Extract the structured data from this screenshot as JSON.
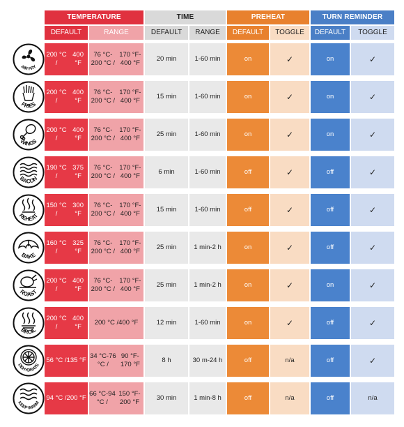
{
  "colors": {
    "temp_header": "#e0313f",
    "temp_default": "#e63946",
    "temp_range": "#f0a3a8",
    "time_header": "#d9d9d9",
    "time_cell": "#e9e9e9",
    "preheat_header": "#e8812e",
    "preheat_default": "#ec8a37",
    "preheat_toggle": "#f9dcc3",
    "reminder_header": "#4a7fc6",
    "reminder_default": "#4a82cc",
    "reminder_toggle": "#cfdbf0"
  },
  "groups": [
    {
      "label": "TEMPERATURE"
    },
    {
      "label": "TIME"
    },
    {
      "label": "PREHEAT"
    },
    {
      "label": "TURN REMINDER"
    }
  ],
  "subheaders": [
    "DEFAULT",
    "RANGE",
    "DEFAULT",
    "RANGE",
    "DEFAULT",
    "TOGGLE",
    "DEFAULT",
    "TOGGLE"
  ],
  "rows": [
    {
      "mode": "AIR FRY",
      "icon": "fan-icon",
      "temp_default": [
        "200 °C /",
        "400 °F"
      ],
      "temp_range": [
        "76 °C-200 °C /",
        "170 °F-400 °F"
      ],
      "time_default": "20 min",
      "time_range": "1-60 min",
      "preheat_default": "on",
      "preheat_toggle": "✓",
      "reminder_default": "on",
      "reminder_toggle": "✓"
    },
    {
      "mode": "FRIES",
      "icon": "fries-icon",
      "temp_default": [
        "200 °C /",
        "400 °F"
      ],
      "temp_range": [
        "76 °C-200 °C /",
        "170 °F-400 °F"
      ],
      "time_default": "15 min",
      "time_range": "1-60 min",
      "preheat_default": "on",
      "preheat_toggle": "✓",
      "reminder_default": "on",
      "reminder_toggle": "✓"
    },
    {
      "mode": "WINGS",
      "icon": "drumstick-icon",
      "temp_default": [
        "200 °C /",
        "400 °F"
      ],
      "temp_range": [
        "76 °C-200 °C /",
        "170 °F-400 °F"
      ],
      "time_default": "25 min",
      "time_range": "1-60 min",
      "preheat_default": "on",
      "preheat_toggle": "✓",
      "reminder_default": "on",
      "reminder_toggle": "✓"
    },
    {
      "mode": "BACON",
      "icon": "bacon-icon",
      "temp_default": [
        "190 °C /",
        "375 °F"
      ],
      "temp_range": [
        "76 °C-200 °C /",
        "170 °F-400 °F"
      ],
      "time_default": "6 min",
      "time_range": "1-60 min",
      "preheat_default": "off",
      "preheat_toggle": "✓",
      "reminder_default": "off",
      "reminder_toggle": "✓"
    },
    {
      "mode": "REHEAT",
      "icon": "steam-icon",
      "temp_default": [
        "150 °C /",
        "300 °F"
      ],
      "temp_range": [
        "76 °C-200 °C /",
        "170 °F-400 °F"
      ],
      "time_default": "15 min",
      "time_range": "1-60 min",
      "preheat_default": "off",
      "preheat_toggle": "✓",
      "reminder_default": "off",
      "reminder_toggle": "✓"
    },
    {
      "mode": "BAKE",
      "icon": "croissant-icon",
      "temp_default": [
        "160 °C /",
        "325 °F"
      ],
      "temp_range": [
        "76 °C-200 °C /",
        "170 °F-400 °F"
      ],
      "time_default": "25 min",
      "time_range": "1 min-2 h",
      "preheat_default": "on",
      "preheat_toggle": "✓",
      "reminder_default": "off",
      "reminder_toggle": "✓"
    },
    {
      "mode": "ROAST",
      "icon": "roast-chicken-icon",
      "temp_default": [
        "200 °C /",
        "400 °F"
      ],
      "temp_range": [
        "76 °C-200 °C /",
        "170 °F-400 °F"
      ],
      "time_default": "25 min",
      "time_range": "1 min-2 h",
      "preheat_default": "on",
      "preheat_toggle": "✓",
      "reminder_default": "on",
      "reminder_toggle": "✓"
    },
    {
      "mode": "BROIL",
      "icon": "broil-heat-icon",
      "temp_default": [
        "200 °C /",
        "400 °F"
      ],
      "temp_range": [
        "200 °C /",
        "400 °F"
      ],
      "time_default": "12 min",
      "time_range": "1-60 min",
      "preheat_default": "on",
      "preheat_toggle": "✓",
      "reminder_default": "off",
      "reminder_toggle": "✓"
    },
    {
      "mode": "DEHYDRATE",
      "icon": "orange-slice-icon",
      "temp_default": [
        "56 °C /",
        "135 °F"
      ],
      "temp_range": [
        "34 °C-76 °C /",
        "90 °F-170 °F"
      ],
      "time_default": "8 h",
      "time_range": "30 m-24 h",
      "preheat_default": "off",
      "preheat_toggle": "n/a",
      "reminder_default": "off",
      "reminder_toggle": "✓"
    },
    {
      "mode": "KEEP WARM",
      "icon": "warm-waves-icon",
      "temp_default": [
        "94 °C /",
        "200 °F"
      ],
      "temp_range": [
        "66 °C-94 °C /",
        "150 °F-200 °F"
      ],
      "time_default": "30 min",
      "time_range": "1 min-8 h",
      "preheat_default": "off",
      "preheat_toggle": "n/a",
      "reminder_default": "off",
      "reminder_toggle": "n/a"
    }
  ]
}
